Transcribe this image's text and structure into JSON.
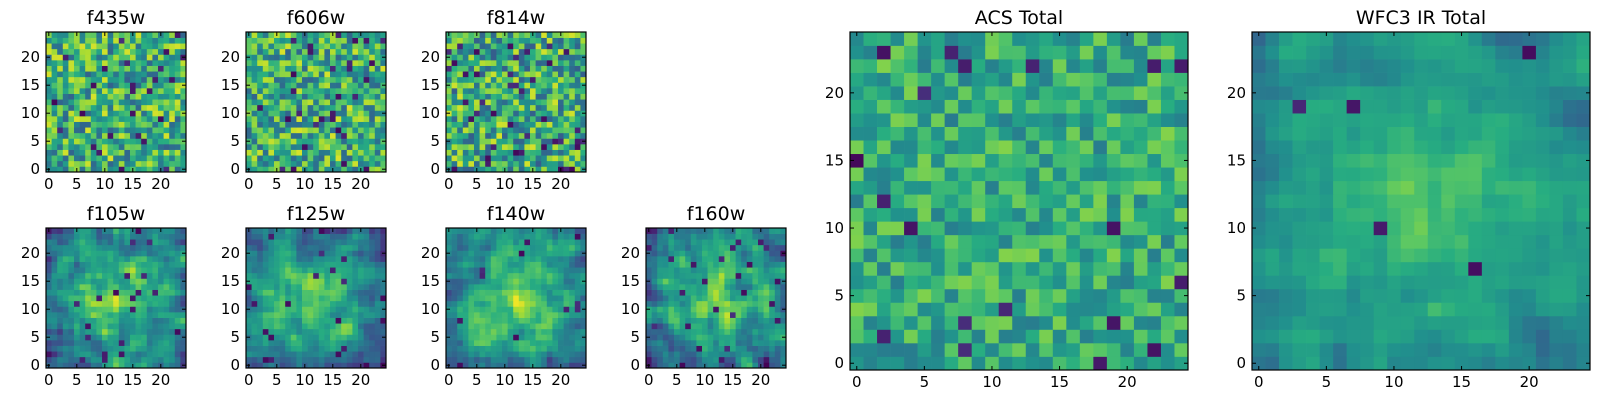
{
  "chart_data": [
    {
      "type": "heatmap",
      "title": "f435w",
      "grid": [
        25,
        25
      ],
      "pattern": "noise",
      "seed": 11,
      "mean": 0.64,
      "spread": 0.18,
      "dark_spots": 0.04,
      "xticks": [
        0,
        5,
        10,
        15,
        20
      ],
      "yticks": [
        0,
        5,
        10,
        15,
        20
      ],
      "xlim": [
        0,
        24
      ],
      "ylim": [
        0,
        24
      ],
      "colormap": "viridis"
    },
    {
      "type": "heatmap",
      "title": "f606w",
      "grid": [
        25,
        25
      ],
      "pattern": "noise",
      "seed": 23,
      "mean": 0.63,
      "spread": 0.18,
      "dark_spots": 0.04,
      "xticks": [
        0,
        5,
        10,
        15,
        20
      ],
      "yticks": [
        0,
        5,
        10,
        15,
        20
      ],
      "xlim": [
        0,
        24
      ],
      "ylim": [
        0,
        24
      ],
      "colormap": "viridis"
    },
    {
      "type": "heatmap",
      "title": "f814w",
      "grid": [
        25,
        25
      ],
      "pattern": "noise",
      "seed": 37,
      "mean": 0.62,
      "spread": 0.19,
      "dark_spots": 0.05,
      "xticks": [
        0,
        5,
        10,
        15,
        20
      ],
      "yticks": [
        0,
        5,
        10,
        15,
        20
      ],
      "xlim": [
        0,
        24
      ],
      "ylim": [
        0,
        24
      ],
      "colormap": "viridis"
    },
    {
      "type": "heatmap",
      "title": "f105w",
      "grid": [
        25,
        25
      ],
      "pattern": "blob",
      "seed": 41,
      "mean": 0.52,
      "spread": 0.14,
      "dark_spots": 0.03,
      "xticks": [
        0,
        5,
        10,
        15,
        20
      ],
      "yticks": [
        0,
        5,
        10,
        15,
        20
      ],
      "xlim": [
        0,
        24
      ],
      "ylim": [
        0,
        24
      ],
      "colormap": "viridis"
    },
    {
      "type": "heatmap",
      "title": "f125w",
      "grid": [
        25,
        25
      ],
      "pattern": "blob",
      "seed": 53,
      "mean": 0.5,
      "spread": 0.15,
      "dark_spots": 0.04,
      "xticks": [
        0,
        5,
        10,
        15,
        20
      ],
      "yticks": [
        0,
        5,
        10,
        15,
        20
      ],
      "xlim": [
        0,
        24
      ],
      "ylim": [
        0,
        24
      ],
      "colormap": "viridis"
    },
    {
      "type": "heatmap",
      "title": "f140w",
      "grid": [
        25,
        25
      ],
      "pattern": "blob",
      "seed": 67,
      "mean": 0.55,
      "spread": 0.14,
      "dark_spots": 0.02,
      "xticks": [
        0,
        5,
        10,
        15,
        20
      ],
      "yticks": [
        0,
        5,
        10,
        15,
        20
      ],
      "xlim": [
        0,
        24
      ],
      "ylim": [
        0,
        24
      ],
      "colormap": "viridis"
    },
    {
      "type": "heatmap",
      "title": "f160w",
      "grid": [
        25,
        25
      ],
      "pattern": "blob",
      "seed": 79,
      "mean": 0.52,
      "spread": 0.15,
      "dark_spots": 0.03,
      "xticks": [
        0,
        5,
        10,
        15,
        20
      ],
      "yticks": [
        0,
        5,
        10,
        15,
        20
      ],
      "xlim": [
        0,
        24
      ],
      "ylim": [
        0,
        24
      ],
      "colormap": "viridis"
    },
    {
      "type": "heatmap",
      "title": "ACS Total",
      "grid": [
        25,
        25
      ],
      "pattern": "noise",
      "seed": 97,
      "mean": 0.62,
      "spread": 0.12,
      "dark_spots": 0.02,
      "xticks": [
        0,
        5,
        10,
        15,
        20
      ],
      "yticks": [
        0,
        5,
        10,
        15,
        20
      ],
      "xlim": [
        0,
        24
      ],
      "ylim": [
        0,
        24
      ],
      "colormap": "viridis"
    },
    {
      "type": "heatmap",
      "title": "WFC3 IR Total",
      "grid": [
        25,
        25
      ],
      "pattern": "blob",
      "seed": 113,
      "mean": 0.56,
      "spread": 0.08,
      "dark_spots": 0.01,
      "xticks": [
        0,
        5,
        10,
        15,
        20
      ],
      "yticks": [
        0,
        5,
        10,
        15,
        20
      ],
      "xlim": [
        0,
        24
      ],
      "ylim": [
        0,
        24
      ],
      "colormap": "viridis"
    }
  ]
}
